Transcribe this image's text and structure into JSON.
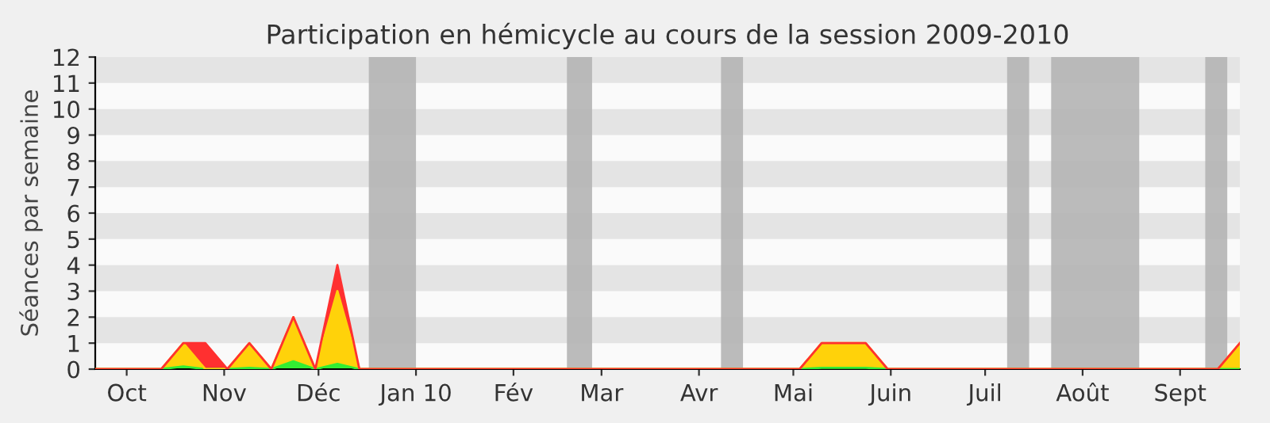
{
  "chart_data": {
    "type": "area",
    "stacked": true,
    "title": "Participation en hémicycle au cours de la session 2009-2010",
    "ylabel": "Séances par semaine",
    "x": [
      "2009-09-21",
      "2009-10-12",
      "2009-10-19",
      "2009-10-26",
      "2009-11-02",
      "2009-11-09",
      "2009-11-16",
      "2009-11-23",
      "2009-11-30",
      "2009-12-07",
      "2009-12-14",
      "2010-05-03",
      "2010-05-10",
      "2010-05-24",
      "2010-05-31",
      "2010-09-13",
      "2010-09-20"
    ],
    "series": [
      {
        "color": "#33ee33",
        "values": [
          0,
          0,
          0.1,
          0,
          0,
          0.05,
          0,
          0.3,
          0,
          0.2,
          0,
          0,
          0.05,
          0.05,
          0,
          0,
          0
        ]
      },
      {
        "color": "#ffd20a",
        "values": [
          0,
          0,
          0.9,
          0,
          0,
          0.95,
          0,
          1.7,
          0,
          2.8,
          0,
          0,
          0.95,
          0.95,
          0,
          0,
          1
        ]
      },
      {
        "color": "#ff3030",
        "values": [
          0,
          0,
          0,
          1,
          0,
          0,
          0,
          0,
          0,
          1,
          0,
          0,
          0,
          0,
          0,
          0,
          0
        ]
      }
    ],
    "xlim": [
      "2009-09-21",
      "2010-09-20"
    ],
    "ylim": [
      0,
      12
    ],
    "yticks": [
      0,
      1,
      2,
      3,
      4,
      5,
      6,
      7,
      8,
      9,
      10,
      11,
      12
    ],
    "xticks": [
      {
        "value": "2009-10-01",
        "label": "Oct"
      },
      {
        "value": "2009-11-01",
        "label": "Nov"
      },
      {
        "value": "2009-12-01",
        "label": "Déc"
      },
      {
        "value": "2010-01-01",
        "label": "Jan 10"
      },
      {
        "value": "2010-02-01",
        "label": "Fév"
      },
      {
        "value": "2010-03-01",
        "label": "Mar"
      },
      {
        "value": "2010-04-01",
        "label": "Avr"
      },
      {
        "value": "2010-05-01",
        "label": "Mai"
      },
      {
        "value": "2010-06-01",
        "label": "Juin"
      },
      {
        "value": "2010-07-01",
        "label": "Juil"
      },
      {
        "value": "2010-08-01",
        "label": "Août"
      },
      {
        "value": "2010-09-01",
        "label": "Sept"
      }
    ],
    "bands": [
      {
        "axis": "x",
        "from": "2009-12-17",
        "to": "2010-01-01",
        "color": "#b4b4b4"
      },
      {
        "axis": "x",
        "from": "2010-02-18",
        "to": "2010-02-26",
        "color": "#b4b4b4"
      },
      {
        "axis": "x",
        "from": "2010-04-08",
        "to": "2010-04-15",
        "color": "#b4b4b4"
      },
      {
        "axis": "x",
        "from": "2010-07-08",
        "to": "2010-07-15",
        "color": "#b4b4b4"
      },
      {
        "axis": "x",
        "from": "2010-07-22",
        "to": "2010-08-19",
        "color": "#b4b4b4"
      },
      {
        "axis": "x",
        "from": "2010-09-09",
        "to": "2010-09-16",
        "color": "#b4b4b4"
      },
      {
        "axis": "y",
        "from": 1,
        "to": 2,
        "color": "#e4e4e4"
      },
      {
        "axis": "y",
        "from": 3,
        "to": 4,
        "color": "#e4e4e4"
      },
      {
        "axis": "y",
        "from": 5,
        "to": 6,
        "color": "#e4e4e4"
      },
      {
        "axis": "y",
        "from": 7,
        "to": 8,
        "color": "#e4e4e4"
      },
      {
        "axis": "y",
        "from": 9,
        "to": 10,
        "color": "#e4e4e4"
      },
      {
        "axis": "y",
        "from": 11,
        "to": 12,
        "color": "#e4e4e4"
      }
    ]
  }
}
